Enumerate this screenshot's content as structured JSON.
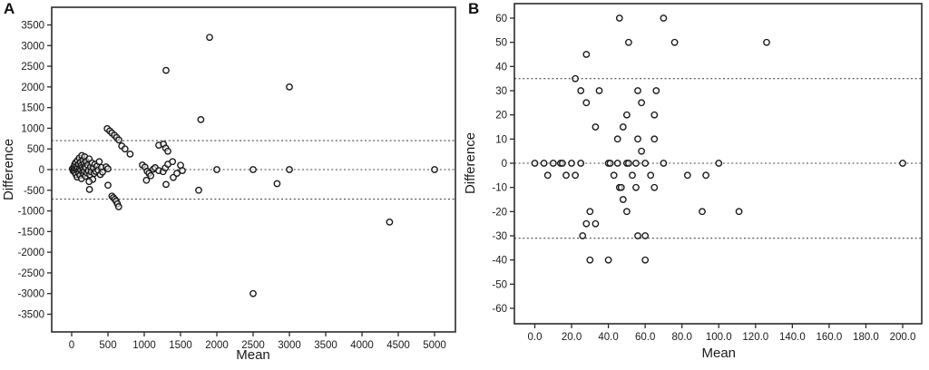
{
  "figure": {
    "background": "#ffffff",
    "text_color": "#1a1a1a",
    "frame_color": "#2b2b2b",
    "point_color": "#161616",
    "ref_line_color": "#4a4a4a"
  },
  "chart_data": [
    {
      "type": "scatter",
      "panel_label": "A",
      "xlabel": "Mean",
      "ylabel": "Difference",
      "x_tick_labels": [
        "0",
        "500",
        "1000",
        "1500",
        "2000",
        "2500",
        "3000",
        "3500",
        "4000",
        "4500",
        "5000"
      ],
      "x_tick_values": [
        0,
        500,
        1000,
        1500,
        2000,
        2500,
        3000,
        3500,
        4000,
        4500,
        5000
      ],
      "y_tick_labels": [
        "3500",
        "3000",
        "2500",
        "2000",
        "1500",
        "1000",
        "500",
        "0",
        "-500",
        "-1000",
        "-1500",
        "-2000",
        "-2500",
        "-3000",
        "-3500"
      ],
      "y_tick_values": [
        3500,
        3000,
        2500,
        2000,
        1500,
        1000,
        500,
        0,
        -500,
        -1000,
        -1500,
        -2000,
        -2500,
        -3000,
        -3500
      ],
      "xlim": [
        0,
        5000
      ],
      "ylim": [
        -3500,
        3500
      ],
      "ref_lines": {
        "mean": 0,
        "upper": 700,
        "lower": -715
      },
      "points": [
        [
          10,
          20
        ],
        [
          20,
          -30
        ],
        [
          30,
          60
        ],
        [
          35,
          -10
        ],
        [
          40,
          120
        ],
        [
          45,
          -70
        ],
        [
          50,
          30
        ],
        [
          55,
          170
        ],
        [
          60,
          -120
        ],
        [
          65,
          80
        ],
        [
          70,
          10
        ],
        [
          75,
          -180
        ],
        [
          80,
          220
        ],
        [
          85,
          45
        ],
        [
          90,
          -45
        ],
        [
          95,
          130
        ],
        [
          100,
          -90
        ],
        [
          105,
          280
        ],
        [
          110,
          25
        ],
        [
          115,
          -140
        ],
        [
          120,
          180
        ],
        [
          125,
          -15
        ],
        [
          130,
          95
        ],
        [
          135,
          -220
        ],
        [
          140,
          340
        ],
        [
          145,
          55
        ],
        [
          150,
          -60
        ],
        [
          155,
          230
        ],
        [
          160,
          15
        ],
        [
          165,
          -110
        ],
        [
          170,
          150
        ],
        [
          175,
          -35
        ],
        [
          180,
          310
        ],
        [
          185,
          75
        ],
        [
          190,
          -160
        ],
        [
          195,
          40
        ],
        [
          200,
          200
        ],
        [
          210,
          -80
        ],
        [
          220,
          110
        ],
        [
          230,
          -25
        ],
        [
          240,
          260
        ],
        [
          250,
          -130
        ],
        [
          260,
          60
        ],
        [
          270,
          -55
        ],
        [
          280,
          160
        ],
        [
          290,
          -240
        ],
        [
          300,
          35
        ],
        [
          310,
          -95
        ],
        [
          320,
          130
        ],
        [
          335,
          -45
        ],
        [
          350,
          80
        ],
        [
          365,
          -15
        ],
        [
          380,
          190
        ],
        [
          395,
          -120
        ],
        [
          410,
          50
        ],
        [
          425,
          -60
        ],
        [
          240,
          -290
        ],
        [
          245,
          -480
        ],
        [
          475,
          65
        ],
        [
          500,
          20
        ],
        [
          500,
          -380
        ],
        [
          490,
          990
        ],
        [
          525,
          935
        ],
        [
          555,
          885
        ],
        [
          590,
          830
        ],
        [
          620,
          775
        ],
        [
          650,
          715
        ],
        [
          690,
          570
        ],
        [
          735,
          500
        ],
        [
          805,
          375
        ],
        [
          555,
          -640
        ],
        [
          575,
          -680
        ],
        [
          595,
          -720
        ],
        [
          612,
          -765
        ],
        [
          630,
          -830
        ],
        [
          648,
          -900
        ],
        [
          975,
          110
        ],
        [
          1010,
          60
        ],
        [
          1030,
          -260
        ],
        [
          1040,
          -40
        ],
        [
          1065,
          -90
        ],
        [
          1090,
          -150
        ],
        [
          1125,
          10
        ],
        [
          1150,
          45
        ],
        [
          1200,
          -25
        ],
        [
          1260,
          -50
        ],
        [
          1290,
          40
        ],
        [
          1325,
          130
        ],
        [
          1390,
          190
        ],
        [
          1400,
          -190
        ],
        [
          1450,
          -90
        ],
        [
          1500,
          105
        ],
        [
          1525,
          -25
        ],
        [
          1300,
          -360
        ],
        [
          1200,
          590
        ],
        [
          1265,
          615
        ],
        [
          1295,
          520
        ],
        [
          1325,
          445
        ],
        [
          1780,
          1210
        ],
        [
          1900,
          3200
        ],
        [
          1300,
          2400
        ],
        [
          3000,
          2000
        ],
        [
          2500,
          -3000
        ],
        [
          4380,
          -1270
        ],
        [
          2830,
          -340
        ],
        [
          1750,
          -500
        ],
        [
          2000,
          0
        ],
        [
          2500,
          0
        ],
        [
          3000,
          0
        ],
        [
          5000,
          0
        ]
      ]
    },
    {
      "type": "scatter",
      "panel_label": "B",
      "xlabel": "Mean",
      "ylabel": "Difference",
      "x_tick_labels": [
        "0.0",
        "20.0",
        "40.0",
        "60.0",
        "80.0",
        "100.0",
        "120.0",
        "140.0",
        "160.0",
        "180.0",
        "200.0"
      ],
      "x_tick_values": [
        0,
        20,
        40,
        60,
        80,
        100,
        120,
        140,
        160,
        180,
        200
      ],
      "y_tick_labels": [
        "60",
        "50",
        "40",
        "30",
        "20",
        "10",
        "0",
        "-10",
        "-20",
        "-30",
        "-40",
        "-50",
        "-60"
      ],
      "y_tick_values": [
        60,
        50,
        40,
        30,
        20,
        10,
        0,
        -10,
        -20,
        -30,
        -40,
        -50,
        -60
      ],
      "xlim": [
        0,
        200
      ],
      "ylim": [
        -60,
        60
      ],
      "ref_lines": {
        "mean": 0,
        "upper": 35,
        "lower": -31
      },
      "points": [
        [
          46,
          60
        ],
        [
          70,
          60
        ],
        [
          51,
          50
        ],
        [
          76,
          50
        ],
        [
          126,
          50
        ],
        [
          28,
          45
        ],
        [
          22,
          35
        ],
        [
          25,
          30
        ],
        [
          35,
          30
        ],
        [
          56,
          30
        ],
        [
          66,
          30
        ],
        [
          28,
          25
        ],
        [
          58,
          25
        ],
        [
          50,
          20
        ],
        [
          65,
          20
        ],
        [
          33,
          15
        ],
        [
          48,
          15
        ],
        [
          45,
          10
        ],
        [
          56,
          10
        ],
        [
          65,
          10
        ],
        [
          58,
          5
        ],
        [
          0,
          0
        ],
        [
          5,
          0
        ],
        [
          10,
          0
        ],
        [
          14,
          0
        ],
        [
          15,
          0
        ],
        [
          20,
          0
        ],
        [
          25,
          0
        ],
        [
          40,
          0
        ],
        [
          41,
          0
        ],
        [
          45,
          0
        ],
        [
          50,
          0
        ],
        [
          51,
          0
        ],
        [
          55,
          0
        ],
        [
          60,
          0
        ],
        [
          70,
          0
        ],
        [
          100,
          0
        ],
        [
          200,
          0
        ],
        [
          7,
          -5
        ],
        [
          17,
          -5
        ],
        [
          22,
          -5
        ],
        [
          43,
          -5
        ],
        [
          53,
          -5
        ],
        [
          63,
          -5
        ],
        [
          83,
          -5
        ],
        [
          93,
          -5
        ],
        [
          46,
          -10
        ],
        [
          47,
          -10
        ],
        [
          55,
          -10
        ],
        [
          65,
          -10
        ],
        [
          48,
          -15
        ],
        [
          30,
          -20
        ],
        [
          50,
          -20
        ],
        [
          91,
          -20
        ],
        [
          111,
          -20
        ],
        [
          28,
          -25
        ],
        [
          33,
          -25
        ],
        [
          26,
          -30
        ],
        [
          56,
          -30
        ],
        [
          60,
          -30
        ],
        [
          30,
          -40
        ],
        [
          40,
          -40
        ],
        [
          60,
          -40
        ]
      ]
    }
  ]
}
